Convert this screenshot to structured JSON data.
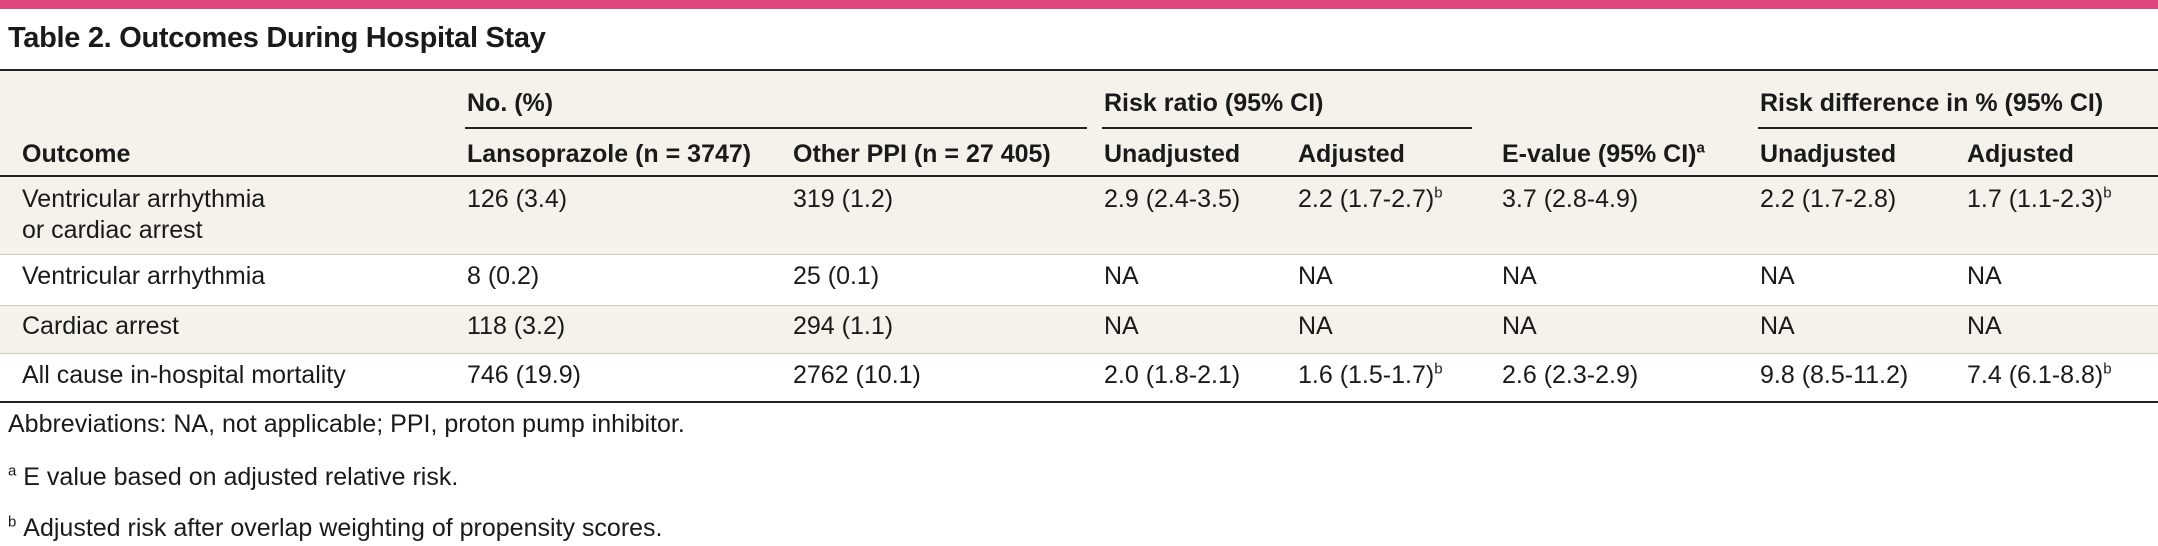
{
  "title": "Table 2. Outcomes During Hospital Stay",
  "header": {
    "outcome": "Outcome",
    "group_no": "No. (%)",
    "group_rr": "Risk ratio (95% CI)",
    "group_rd": "Risk difference in % (95% CI)",
    "lanso": "Lansoprazole (n = 3747)",
    "other": "Other PPI (n = 27 405)",
    "rr_unadj": "Unadjusted",
    "rr_adj": "Adjusted",
    "evalue": "E-value (95% CI)",
    "evalue_sup": "a",
    "rd_unadj": "Unadjusted",
    "rd_adj": "Adjusted"
  },
  "rows": [
    {
      "outcome_line1": "Ventricular arrhythmia",
      "outcome_line2": "or cardiac arrest",
      "lanso": "126 (3.4)",
      "other": "319 (1.2)",
      "rr_unadj": "2.9 (2.4-3.5)",
      "rr_adj": "2.2 (1.7-2.7)",
      "rr_adj_sup": "b",
      "evalue": "3.7 (2.8-4.9)",
      "rd_unadj": "2.2 (1.7-2.8)",
      "rd_adj": "1.7 (1.1-2.3)",
      "rd_adj_sup": "b"
    },
    {
      "outcome_line1": "Ventricular arrhythmia",
      "lanso": "8 (0.2)",
      "other": "25 (0.1)",
      "rr_unadj": "NA",
      "rr_adj": "NA",
      "evalue": "NA",
      "rd_unadj": "NA",
      "rd_adj": "NA"
    },
    {
      "outcome_line1": "Cardiac arrest",
      "lanso": "118 (3.2)",
      "other": "294 (1.1)",
      "rr_unadj": "NA",
      "rr_adj": "NA",
      "evalue": "NA",
      "rd_unadj": "NA",
      "rd_adj": "NA"
    },
    {
      "outcome_line1": "All cause in-hospital mortality",
      "lanso": "746 (19.9)",
      "other": "2762 (10.1)",
      "rr_unadj": "2.0 (1.8-2.1)",
      "rr_adj": "1.6 (1.5-1.7)",
      "rr_adj_sup": "b",
      "evalue": "2.6 (2.3-2.9)",
      "rd_unadj": "9.8 (8.5-11.2)",
      "rd_adj": "7.4 (6.1-8.8)",
      "rd_adj_sup": "b"
    }
  ],
  "notes": {
    "abbrev": "Abbreviations: NA, not applicable; PPI, proton pump inhibitor.",
    "a_mark": "a",
    "a_text": "E value based on adjusted relative risk.",
    "b_mark": "b",
    "b_text": "Adjusted risk after overlap weighting of propensity scores."
  },
  "colors": {
    "accent": "#e0457b",
    "shade": "#f4f2ea",
    "rule": "#222222"
  }
}
